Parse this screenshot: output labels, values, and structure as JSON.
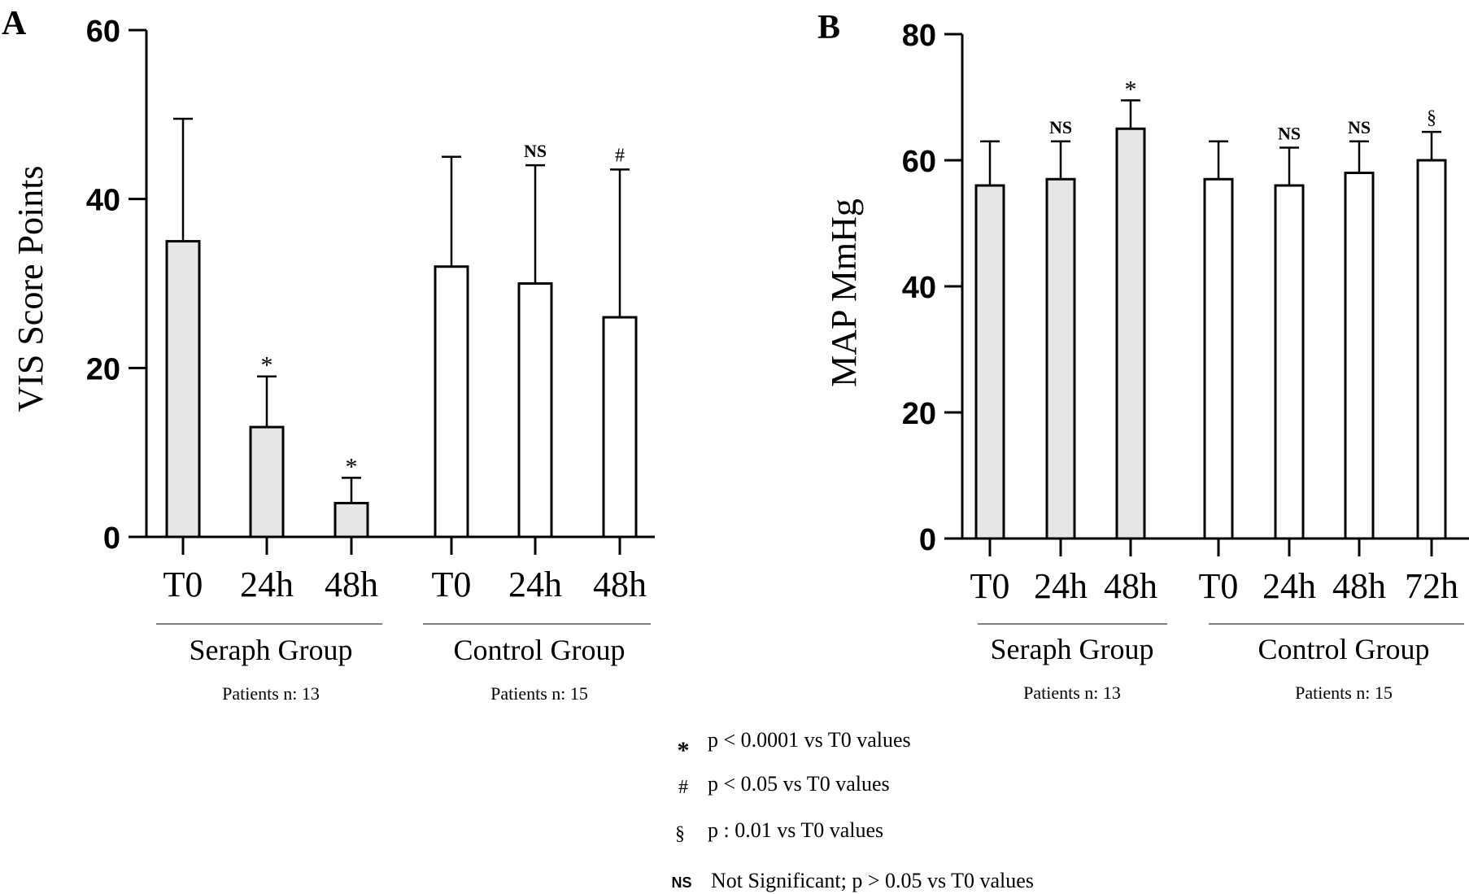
{
  "chart_data": [
    {
      "panel": "A",
      "type": "bar",
      "ylabel": "VIS Score Points",
      "ylim": [
        0,
        60
      ],
      "yticks": [
        0,
        20,
        40,
        60
      ],
      "groups": [
        {
          "name": "Seraph Group",
          "patients": "Patients n: 13",
          "fill": "#e6e6e6"
        },
        {
          "name": "Control Group",
          "patients": "Patients n: 15",
          "fill": "#ffffff"
        }
      ],
      "bars": [
        {
          "group": 0,
          "label": "T0",
          "value": 35,
          "err": 49.5,
          "annot": ""
        },
        {
          "group": 0,
          "label": "24h",
          "value": 13,
          "err": 19,
          "annot": "*"
        },
        {
          "group": 0,
          "label": "48h",
          "value": 4,
          "err": 7,
          "annot": "*"
        },
        {
          "group": 1,
          "label": "T0",
          "value": 32,
          "err": 45,
          "annot": ""
        },
        {
          "group": 1,
          "label": "24h",
          "value": 30,
          "err": 44,
          "annot": "NS"
        },
        {
          "group": 1,
          "label": "48h",
          "value": 26,
          "err": 43.5,
          "annot": "#"
        }
      ]
    },
    {
      "panel": "B",
      "type": "bar",
      "ylabel": "MAP MmHg",
      "ylim": [
        0,
        80
      ],
      "yticks": [
        0,
        20,
        40,
        60,
        80
      ],
      "groups": [
        {
          "name": "Seraph Group",
          "patients": "Patients n: 13",
          "fill": "#e6e6e6"
        },
        {
          "name": "Control Group",
          "patients": "Patients n: 15",
          "fill": "#ffffff"
        }
      ],
      "bars": [
        {
          "group": 0,
          "label": "T0",
          "value": 56,
          "err": 63,
          "annot": ""
        },
        {
          "group": 0,
          "label": "24h",
          "value": 57,
          "err": 63,
          "annot": "NS"
        },
        {
          "group": 0,
          "label": "48h",
          "value": 65,
          "err": 69.5,
          "annot": "*"
        },
        {
          "group": 1,
          "label": "T0",
          "value": 57,
          "err": 63,
          "annot": ""
        },
        {
          "group": 1,
          "label": "24h",
          "value": 56,
          "err": 62,
          "annot": "NS"
        },
        {
          "group": 1,
          "label": "48h",
          "value": 58,
          "err": 63,
          "annot": "NS"
        },
        {
          "group": 1,
          "label": "72h",
          "value": 60,
          "err": 64.5,
          "annot": "§"
        }
      ]
    }
  ],
  "legend": [
    {
      "symbol": "*",
      "text": "p < 0.0001 vs T0 values"
    },
    {
      "symbol": "#",
      "text": "p < 0.05 vs T0 values"
    },
    {
      "symbol": "§",
      "text": "p : 0.01 vs T0 values"
    },
    {
      "symbol": "NS",
      "text": "Not Significant; p > 0.05 vs T0 values"
    }
  ]
}
